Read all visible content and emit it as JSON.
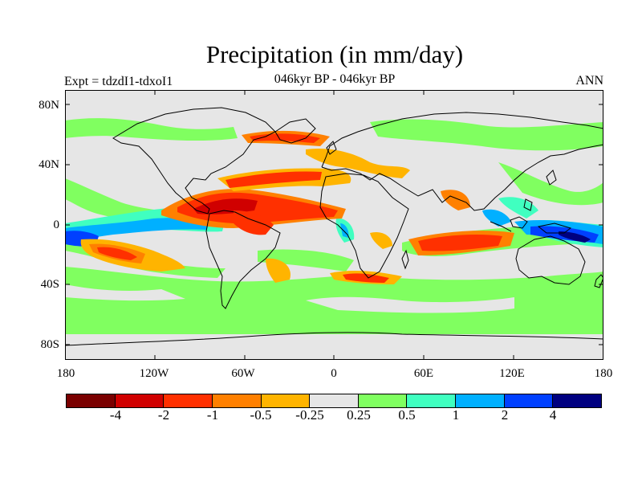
{
  "title": "Precipitation (in mm/day)",
  "subtitle": "046kyr BP - 046kyr BP",
  "left_label": "Expt = tdzdI1-tdxoI1",
  "right_label": "ANN",
  "lat_labels": [
    "80N",
    "40N",
    "0",
    "40S",
    "80S"
  ],
  "lon_labels": [
    "180",
    "120W",
    "60W",
    "0",
    "60E",
    "120E",
    "180"
  ],
  "colorbar": {
    "colors": [
      "#7a0000",
      "#d00000",
      "#ff3000",
      "#ff8000",
      "#ffb400",
      "#e6e6e6",
      "#80ff60",
      "#40ffc0",
      "#00b0ff",
      "#0040ff",
      "#000080"
    ],
    "labels": [
      "-4",
      "-2",
      "-1",
      "-0.5",
      "-0.25",
      "0.25",
      "0.5",
      "1",
      "2",
      "4"
    ]
  },
  "map_colors": {
    "background": "#e6e6e6",
    "coast": "#000000"
  }
}
